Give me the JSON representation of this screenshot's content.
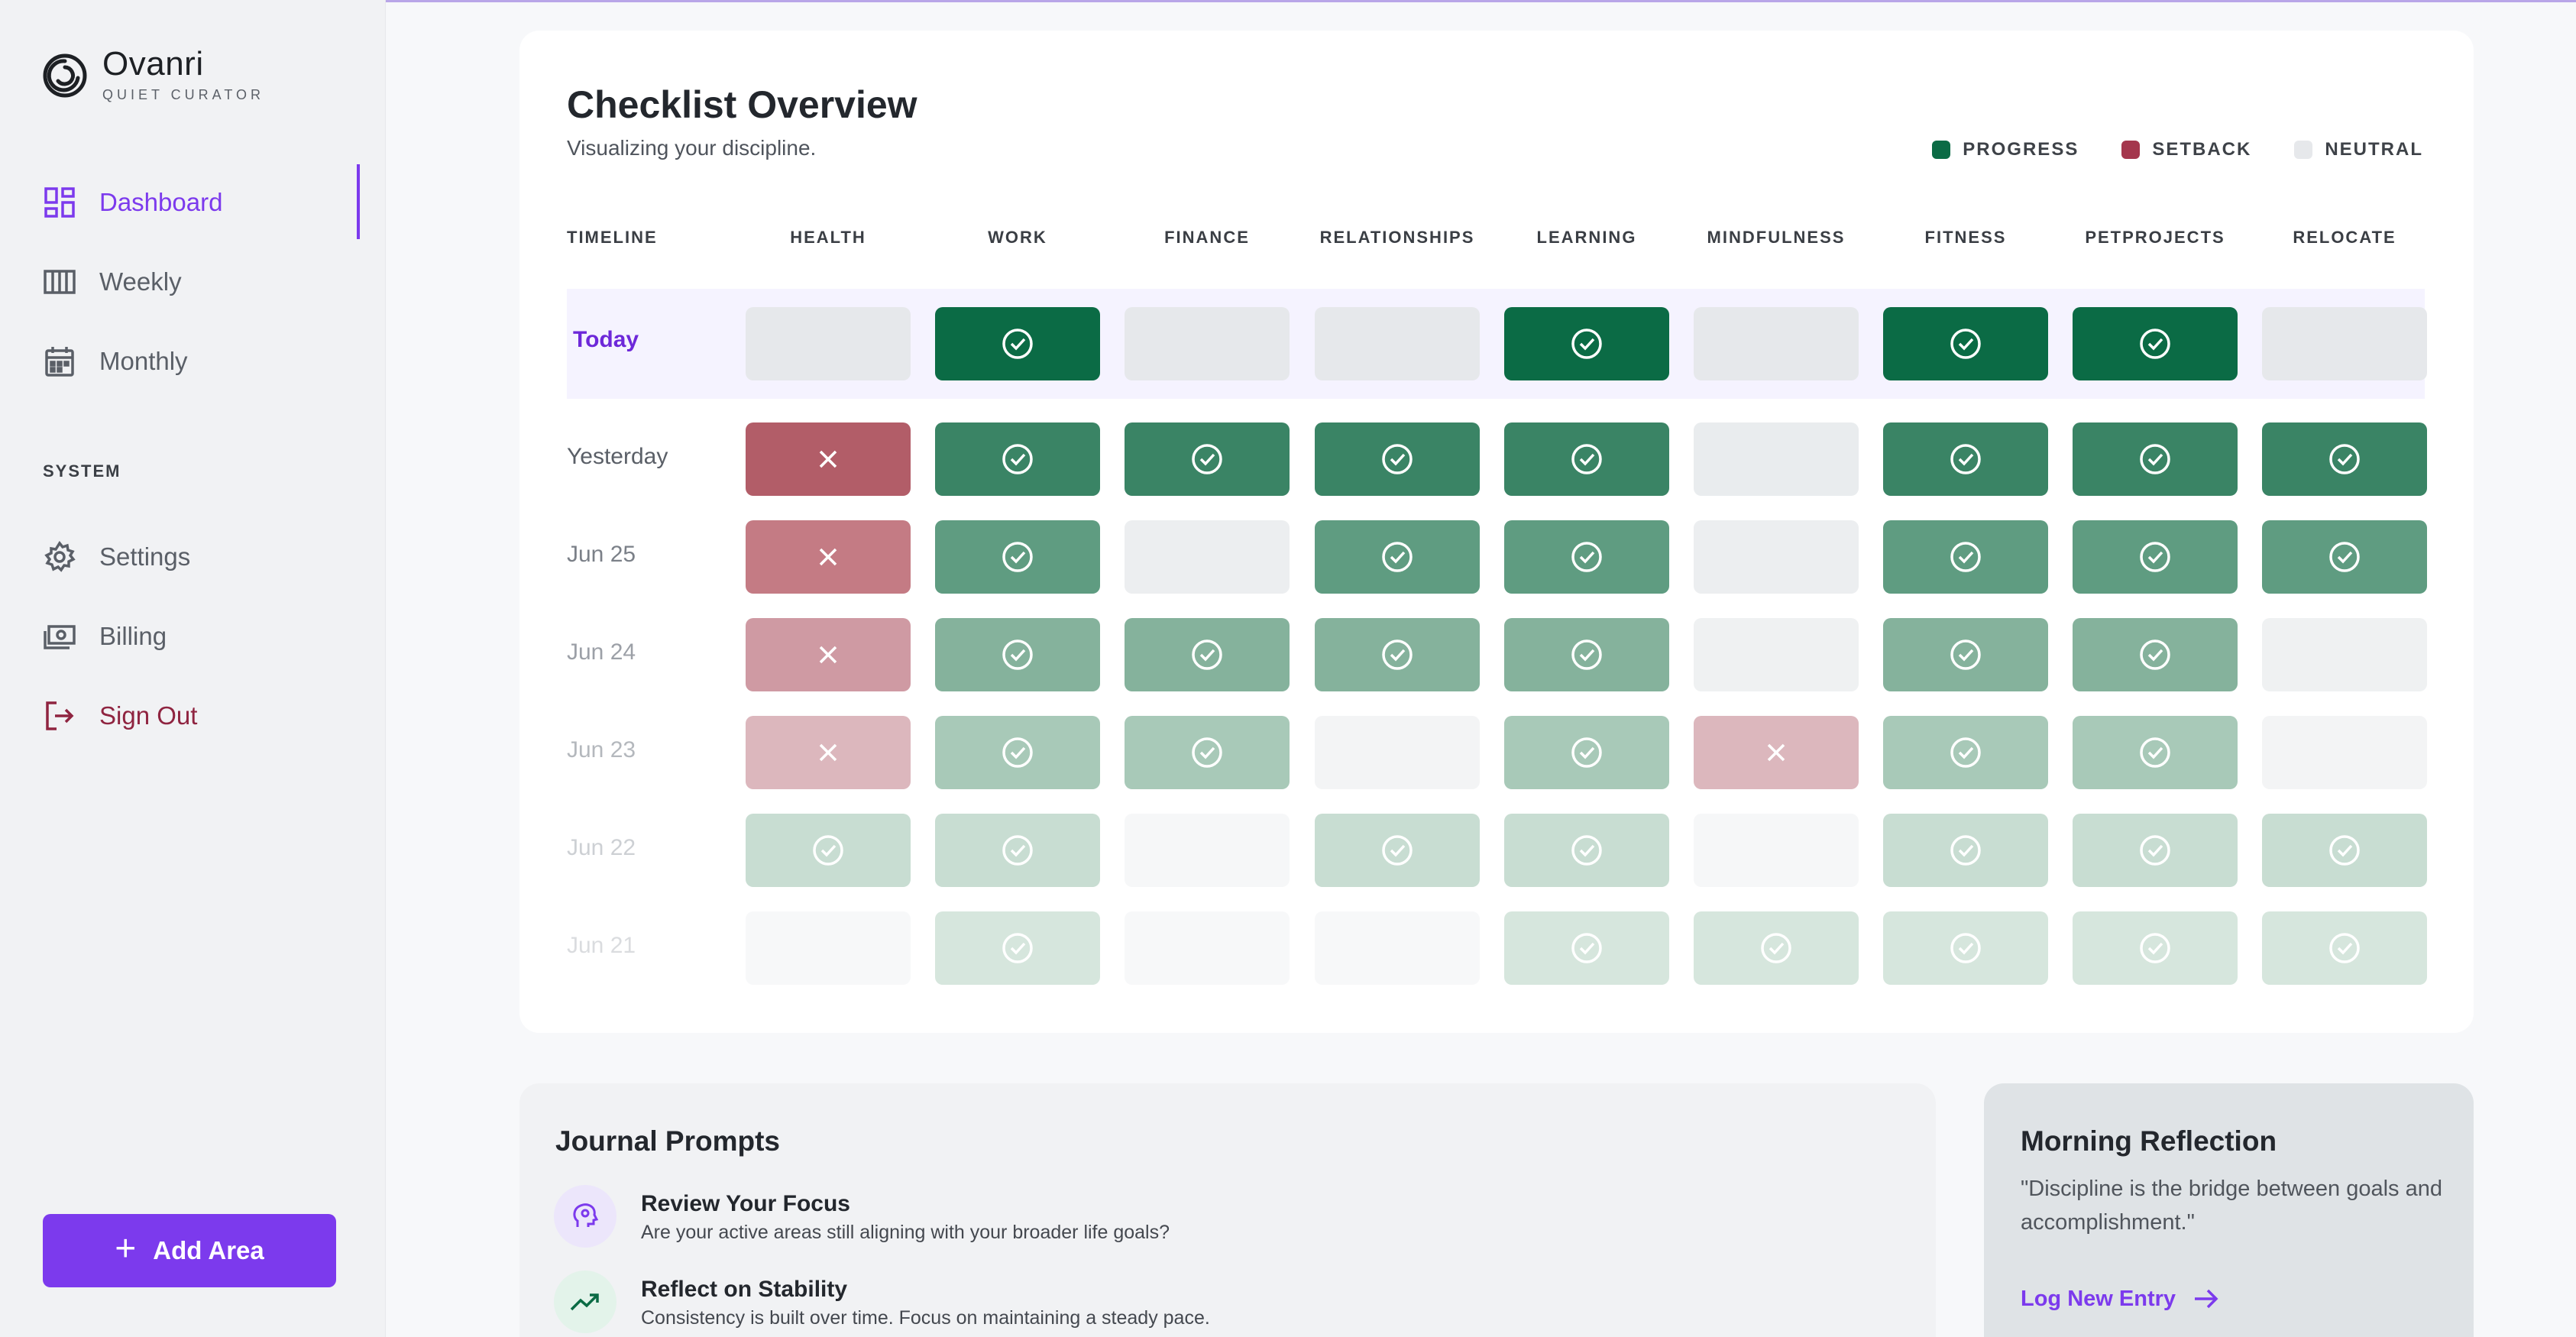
{
  "brand": {
    "name": "Ovanri",
    "tagline": "QUIET CURATOR"
  },
  "sidebar": {
    "nav": [
      {
        "label": "Dashboard",
        "icon": "dashboard-icon",
        "active": true
      },
      {
        "label": "Weekly",
        "icon": "columns-icon"
      },
      {
        "label": "Monthly",
        "icon": "calendar-icon"
      }
    ],
    "section_label": "SYSTEM",
    "system": [
      {
        "label": "Settings",
        "icon": "gear-icon"
      },
      {
        "label": "Billing",
        "icon": "billing-icon"
      },
      {
        "label": "Sign Out",
        "icon": "sign-out-icon"
      }
    ],
    "add_button": "Add Area"
  },
  "checklist": {
    "title": "Checklist Overview",
    "subtitle": "Visualizing your discipline.",
    "legend": [
      {
        "label": "PROGRESS",
        "color": "#0b6b45"
      },
      {
        "label": "SETBACK",
        "color": "#a4374d"
      },
      {
        "label": "NEUTRAL",
        "color": "#e6e8eb"
      }
    ],
    "timeline_header": "TIMELINE",
    "areas": [
      "HEALTH",
      "WORK",
      "FINANCE",
      "RELATIONSHIPS",
      "LEARNING",
      "MINDFULNESS",
      "FITNESS",
      "PETPROJECTS",
      "RELOCATE"
    ],
    "rows": [
      {
        "label": "Today",
        "statuses": [
          "N",
          "P",
          "N",
          "N",
          "P",
          "N",
          "P",
          "P",
          "N"
        ]
      },
      {
        "label": "Yesterday",
        "statuses": [
          "S",
          "P",
          "P",
          "P",
          "P",
          "N",
          "P",
          "P",
          "P"
        ]
      },
      {
        "label": "Jun 25",
        "statuses": [
          "S",
          "P",
          "N",
          "P",
          "P",
          "N",
          "P",
          "P",
          "P"
        ]
      },
      {
        "label": "Jun 24",
        "statuses": [
          "S",
          "P",
          "P",
          "P",
          "P",
          "N",
          "P",
          "P",
          "N"
        ]
      },
      {
        "label": "Jun 23",
        "statuses": [
          "S",
          "P",
          "P",
          "N",
          "P",
          "S",
          "P",
          "P",
          "N"
        ]
      },
      {
        "label": "Jun 22",
        "statuses": [
          "P",
          "P",
          "N",
          "P",
          "P",
          "N",
          "P",
          "P",
          "P"
        ]
      },
      {
        "label": "Jun 21",
        "statuses": [
          "N",
          "P",
          "N",
          "N",
          "P",
          "P",
          "P",
          "P",
          "P"
        ]
      }
    ]
  },
  "journal": {
    "title": "Journal Prompts",
    "prompts": [
      {
        "title": "Review Your Focus",
        "desc": "Are your active areas still aligning with your broader life goals?",
        "icon": "mind-icon"
      },
      {
        "title": "Reflect on Stability",
        "desc": "Consistency is built over time. Focus on maintaining a steady pace.",
        "icon": "trend-up-icon"
      }
    ]
  },
  "reflection": {
    "title": "Morning Reflection",
    "quote": "\"Discipline is the bridge between goals and accomplishment.\"",
    "link": "Log New Entry"
  }
}
